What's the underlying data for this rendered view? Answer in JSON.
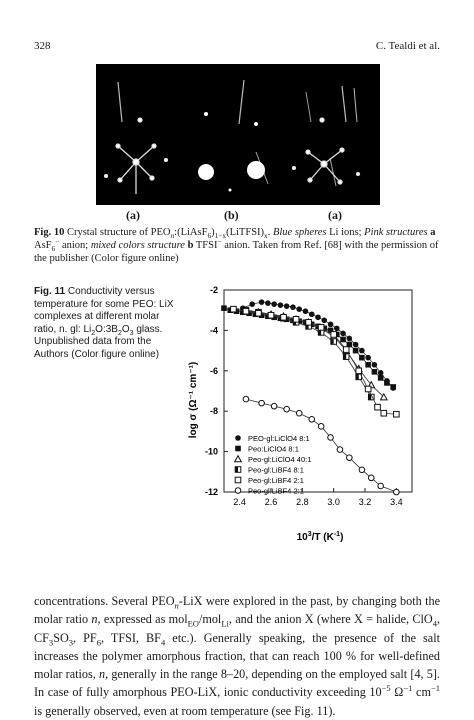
{
  "header": {
    "page_number": "328",
    "author": "C. Tealdi et al."
  },
  "figure10": {
    "panel_labels": [
      "(a)",
      "(b)",
      "(a)"
    ],
    "caption_label": "Fig. 10",
    "caption_text_part1": "Crystal structure of PEO",
    "caption_text_part2": ":(LiAsF",
    "caption_text_part3": ")",
    "caption_text_part4": "(LiTFSI)",
    "caption_text_part5": ". ",
    "caption_italic1": "Blue spheres",
    "caption_text_part6": " Li ions; ",
    "caption_italic2": "Pink structures",
    "caption_bold_a": "a",
    "caption_text_part7": " AsF",
    "caption_text_part8": " anion; ",
    "caption_italic3": "mixed colors structure",
    "caption_bold_b": "b",
    "caption_text_part9": " TFSI",
    "caption_text_part10": " anion. Taken from Ref. [68] with the permission of the publisher (Color figure online)",
    "sub_6": "6",
    "sub_1x": "1−x",
    "sub_x": "x",
    "sup_minus": "−"
  },
  "figure11": {
    "caption_label": "Fig. 11",
    "caption_text": "Conductivity versus temperature for some PEO: LiX complexes at different molar ratio, n. gl: Li",
    "caption_text_2": "O:3B",
    "caption_text_3": "O",
    "caption_text_4": " glass. Unpublished data from the Authors (Color figure online)",
    "sub2": "2",
    "sub3": "3"
  },
  "chart_data": {
    "type": "scatter",
    "xlabel_base": "10",
    "xlabel_sup": "3",
    "xlabel_rest": "/T (K",
    "xlabel_sup2": "-1",
    "xlabel_end": ")",
    "ylabel": "log σ (Ω⁻¹ cm⁻¹)",
    "xlim": [
      2.3,
      3.5
    ],
    "ylim": [
      -12,
      -2
    ],
    "xticks": [
      2.4,
      2.6,
      2.8,
      3.0,
      3.2,
      3.4
    ],
    "xtick_labels": [
      "2.4",
      "2.6",
      "2.8",
      "3.0",
      "3.2",
      "3.4"
    ],
    "yticks": [
      -2,
      -4,
      -6,
      -8,
      -10,
      -12
    ],
    "ytick_labels": [
      "-2",
      "-4",
      "-6",
      "-8",
      "-10",
      "-12"
    ],
    "legend_position": "bottom-left",
    "series": [
      {
        "name": "PEO-gl:LiClO4 8:1",
        "marker": "filled-circle",
        "x": [
          2.42,
          2.48,
          2.54,
          2.58,
          2.62,
          2.66,
          2.7,
          2.74,
          2.78,
          2.82,
          2.86,
          2.9,
          2.94,
          2.98,
          3.02,
          3.06,
          3.1,
          3.14,
          3.18,
          3.22,
          3.26,
          3.3,
          3.34,
          3.38
        ],
        "y": [
          -2.9,
          -2.7,
          -2.6,
          -2.65,
          -2.7,
          -2.75,
          -2.8,
          -2.85,
          -2.95,
          -3.05,
          -3.2,
          -3.35,
          -3.5,
          -3.7,
          -3.9,
          -4.15,
          -4.4,
          -4.7,
          -5.0,
          -5.35,
          -5.7,
          -6.1,
          -6.5,
          -6.85
        ]
      },
      {
        "name": "Peo:LiClO4 8:1",
        "marker": "filled-square",
        "x": [
          2.3,
          2.34,
          2.38,
          2.42,
          2.46,
          2.5,
          2.54,
          2.58,
          2.62,
          2.66,
          2.7,
          2.74,
          2.78,
          2.82,
          2.86,
          2.9,
          2.94,
          2.98,
          3.02,
          3.06,
          3.1,
          3.14,
          3.18,
          3.22,
          3.26,
          3.3,
          3.34,
          3.38
        ],
        "y": [
          -2.9,
          -3.0,
          -3.05,
          -3.1,
          -3.15,
          -3.2,
          -3.25,
          -3.3,
          -3.35,
          -3.4,
          -3.45,
          -3.5,
          -3.55,
          -3.6,
          -3.7,
          -3.8,
          -3.9,
          -4.0,
          -4.2,
          -4.45,
          -4.7,
          -5.0,
          -5.35,
          -5.7,
          -6.05,
          -6.35,
          -6.6,
          -6.8
        ]
      },
      {
        "name": "Peo-gl:LiClO4 40:1",
        "marker": "open-triangle",
        "x": [
          2.44,
          2.52,
          2.6,
          2.68,
          2.76,
          2.84,
          2.92,
          3.0,
          3.08,
          3.16,
          3.24,
          3.32
        ],
        "y": [
          -3.0,
          -3.1,
          -3.2,
          -3.3,
          -3.45,
          -3.6,
          -3.9,
          -4.3,
          -5.0,
          -5.9,
          -6.7,
          -7.3
        ]
      },
      {
        "name": "Peo-gl:LiBF4 8:1",
        "marker": "half-square",
        "x": [
          2.44,
          2.52,
          2.6,
          2.68,
          2.76,
          2.84,
          2.92,
          3.0,
          3.08,
          3.16,
          3.24
        ],
        "y": [
          -3.0,
          -3.1,
          -3.25,
          -3.4,
          -3.6,
          -3.8,
          -4.1,
          -4.55,
          -5.3,
          -6.3,
          -7.3
        ]
      },
      {
        "name": "Peo-gl:LiBF4 2:1",
        "marker": "open-square",
        "x": [
          2.36,
          2.44,
          2.52,
          2.6,
          2.68,
          2.76,
          2.84,
          2.92,
          3.0,
          3.08,
          3.16,
          3.22,
          3.28,
          3.32,
          3.4
        ],
        "y": [
          -2.95,
          -3.05,
          -3.15,
          -3.25,
          -3.35,
          -3.45,
          -3.6,
          -3.85,
          -4.2,
          -4.95,
          -6.0,
          -6.9,
          -7.8,
          -8.1,
          -8.15
        ]
      },
      {
        "name": "Peo-gl:LiBF4 2:1",
        "marker": "open-circle",
        "x": [
          2.44,
          2.54,
          2.62,
          2.7,
          2.78,
          2.86,
          2.92,
          2.98,
          3.04,
          3.1,
          3.18,
          3.24,
          3.3,
          3.4
        ],
        "y": [
          -7.4,
          -7.6,
          -7.75,
          -7.9,
          -8.1,
          -8.4,
          -8.75,
          -9.3,
          -9.9,
          -10.3,
          -10.9,
          -11.3,
          -11.7,
          -12.0
        ]
      }
    ]
  },
  "body": {
    "p1": "concentrations. Several PEO",
    "p1b": "-LiX were explored in the past, by changing both the molar ratio ",
    "p1c": ", expressed as mol",
    "p1d": "/mol",
    "p1e": ", and the anion X (where X = halide, ClO",
    "p1f": ", CF",
    "p1g": "SO",
    "p1h": ", PF",
    "p1i": ", TFSI, BF",
    "p1j": " etc.). Generally speaking, the presence of the salt increases the polymer amorphous fraction, that can reach 100 % for well-defined molar ratios, ",
    "p1k": ", generally in the range 8–20, depending on the employed salt [4, 5]. In case of fully amorphous PEO-LiX, ionic conductivity exceeding 10",
    "p1l": " Ω",
    "p1m": " cm",
    "p1n": " is generally observed, even at room temperature (see Fig. 11).",
    "n": "n",
    "EO": "EO",
    "Li": "Li",
    "four": "4",
    "three": "3",
    "six": "6",
    "exp5": "−5",
    "exp1": "−1"
  }
}
